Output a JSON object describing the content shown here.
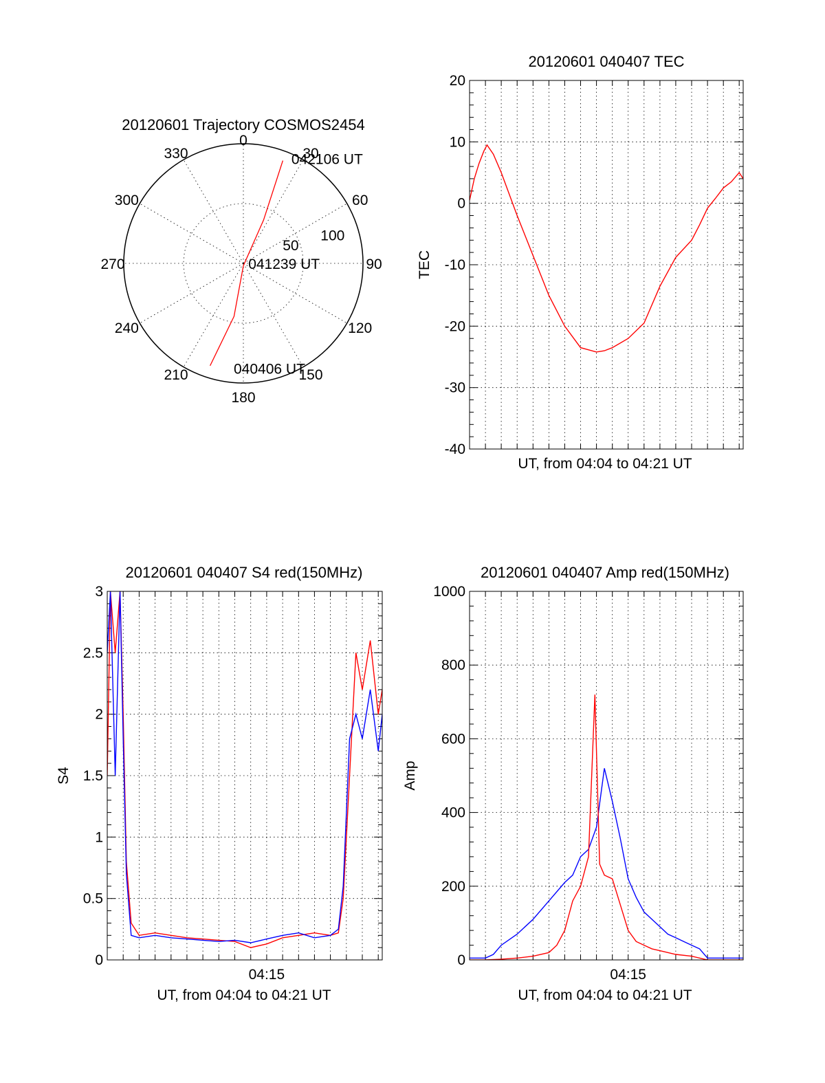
{
  "colors": {
    "red": "#ff0000",
    "blue": "#0000ff",
    "axis": "#000000"
  },
  "chart_data": [
    {
      "id": "trajectory",
      "type": "polar",
      "title": "20120601 Trajectory COSMOS2454",
      "angle_labels": [
        "0",
        "30",
        "60",
        "90",
        "120",
        "150",
        "180",
        "210",
        "240",
        "270",
        "300",
        "330"
      ],
      "radial_ticks": [
        50,
        100
      ],
      "radial_max": 100,
      "grid": true,
      "series": [
        {
          "color": "#ff0000",
          "points": [
            {
              "az": 198,
              "r": 90
            },
            {
              "az": 190,
              "r": 45
            },
            {
              "az": 180,
              "r": 2
            },
            {
              "az": 25,
              "r": 40
            },
            {
              "az": 21,
              "r": 92
            }
          ]
        }
      ],
      "annotations": [
        {
          "text": "042106 UT",
          "az": 24,
          "r": 96
        },
        {
          "text": "041239 UT",
          "az": 90,
          "r": 3
        },
        {
          "text": "040406 UT",
          "az": 186,
          "r": 88
        }
      ]
    },
    {
      "id": "tec",
      "type": "line",
      "title": "20120601 040407 TEC",
      "xlabel": "UT, from 04:04 to 04:21 UT",
      "ylabel": "TEC",
      "xlim": [
        0,
        17.25
      ],
      "ylim": [
        -40,
        20
      ],
      "yticks": [
        -40,
        -30,
        -20,
        -10,
        0,
        10,
        20
      ],
      "grid": true,
      "series": [
        {
          "color": "#ff0000",
          "x": [
            0,
            0.3,
            0.6,
            0.9,
            1.1,
            1.5,
            2,
            3,
            4,
            5,
            6,
            7,
            8,
            8.5,
            9,
            10,
            11,
            12,
            13,
            14,
            14.5,
            15,
            15.5,
            16,
            16.5,
            17,
            17.25
          ],
          "y": [
            0.5,
            4,
            6.5,
            8.5,
            9.5,
            8,
            5,
            -2,
            -8.5,
            -15,
            -20,
            -23.5,
            -24.2,
            -24,
            -23.5,
            -22,
            -19.5,
            -13.5,
            -8.8,
            -6,
            -3.5,
            -0.8,
            0.8,
            2.5,
            3.5,
            5,
            4
          ]
        }
      ]
    },
    {
      "id": "s4",
      "type": "line",
      "title": "20120601 040407 S4 red(150MHz)",
      "xlabel": "UT, from 04:04 to 04:21 UT",
      "ylabel": "S4",
      "xlim": [
        0,
        17.25
      ],
      "ylim": [
        0,
        3
      ],
      "yticks": [
        0,
        0.5,
        1,
        1.5,
        2,
        2.5,
        3
      ],
      "xticklabels": [
        {
          "x": 10,
          "label": "04:15"
        }
      ],
      "grid": true,
      "series": [
        {
          "color": "#ff0000",
          "x": [
            0,
            0.2,
            0.5,
            0.8,
            1.0,
            1.2,
            1.5,
            2,
            3,
            4,
            5,
            6,
            7,
            8,
            9,
            10,
            11,
            12,
            13,
            14,
            14.5,
            14.8,
            15.2,
            15.6,
            16,
            16.5,
            17,
            17.25
          ],
          "y": [
            1.5,
            3,
            2.5,
            3,
            2,
            0.8,
            0.3,
            0.2,
            0.22,
            0.2,
            0.18,
            0.17,
            0.16,
            0.15,
            0.1,
            0.13,
            0.18,
            0.2,
            0.22,
            0.2,
            0.22,
            0.5,
            1.5,
            2.5,
            2.2,
            2.6,
            2.0,
            2.2
          ]
        },
        {
          "color": "#0000ff",
          "x": [
            0,
            0.2,
            0.5,
            0.8,
            1.0,
            1.2,
            1.5,
            2,
            3,
            4,
            5,
            6,
            7,
            8,
            9,
            10,
            11,
            12,
            13,
            14,
            14.5,
            14.8,
            15.2,
            15.6,
            16,
            16.5,
            17,
            17.25
          ],
          "y": [
            2.5,
            3,
            1.5,
            3,
            1.8,
            0.7,
            0.2,
            0.18,
            0.2,
            0.18,
            0.17,
            0.16,
            0.15,
            0.16,
            0.14,
            0.17,
            0.2,
            0.22,
            0.18,
            0.2,
            0.25,
            0.6,
            1.8,
            2.0,
            1.8,
            2.2,
            1.7,
            2.0
          ]
        }
      ]
    },
    {
      "id": "amp",
      "type": "line",
      "title": "20120601 040407 Amp red(150MHz)",
      "xlabel": "UT, from 04:04 to 04:21 UT",
      "ylabel": "Amp",
      "xlim": [
        0,
        17.25
      ],
      "ylim": [
        0,
        1000
      ],
      "yticks": [
        0,
        200,
        400,
        600,
        800,
        1000
      ],
      "xticklabels": [
        {
          "x": 10,
          "label": "04:15"
        }
      ],
      "grid": true,
      "series": [
        {
          "color": "#0000ff",
          "x": [
            0,
            1,
            1.5,
            2,
            3,
            4,
            5,
            6,
            6.5,
            7,
            7.5,
            8,
            8.5,
            9,
            9.5,
            10,
            10.5,
            11,
            11.5,
            12,
            12.5,
            13,
            13.5,
            14,
            14.5,
            15,
            16,
            17.25
          ],
          "y": [
            5,
            5,
            15,
            40,
            70,
            110,
            160,
            210,
            230,
            280,
            300,
            360,
            520,
            430,
            330,
            220,
            170,
            130,
            110,
            90,
            70,
            60,
            50,
            40,
            30,
            5,
            5,
            5
          ]
        },
        {
          "color": "#ff0000",
          "x": [
            0,
            1,
            2,
            3,
            4,
            5,
            5.5,
            6,
            6.5,
            7,
            7.5,
            7.9,
            8.2,
            8.5,
            9,
            9.5,
            10,
            10.5,
            11,
            11.5,
            12,
            13,
            14,
            14.5,
            15,
            16,
            17.25
          ],
          "y": [
            0,
            0,
            2,
            5,
            10,
            20,
            40,
            80,
            160,
            200,
            280,
            720,
            260,
            230,
            220,
            150,
            80,
            50,
            40,
            30,
            25,
            15,
            10,
            5,
            0,
            0,
            0
          ]
        }
      ]
    }
  ]
}
